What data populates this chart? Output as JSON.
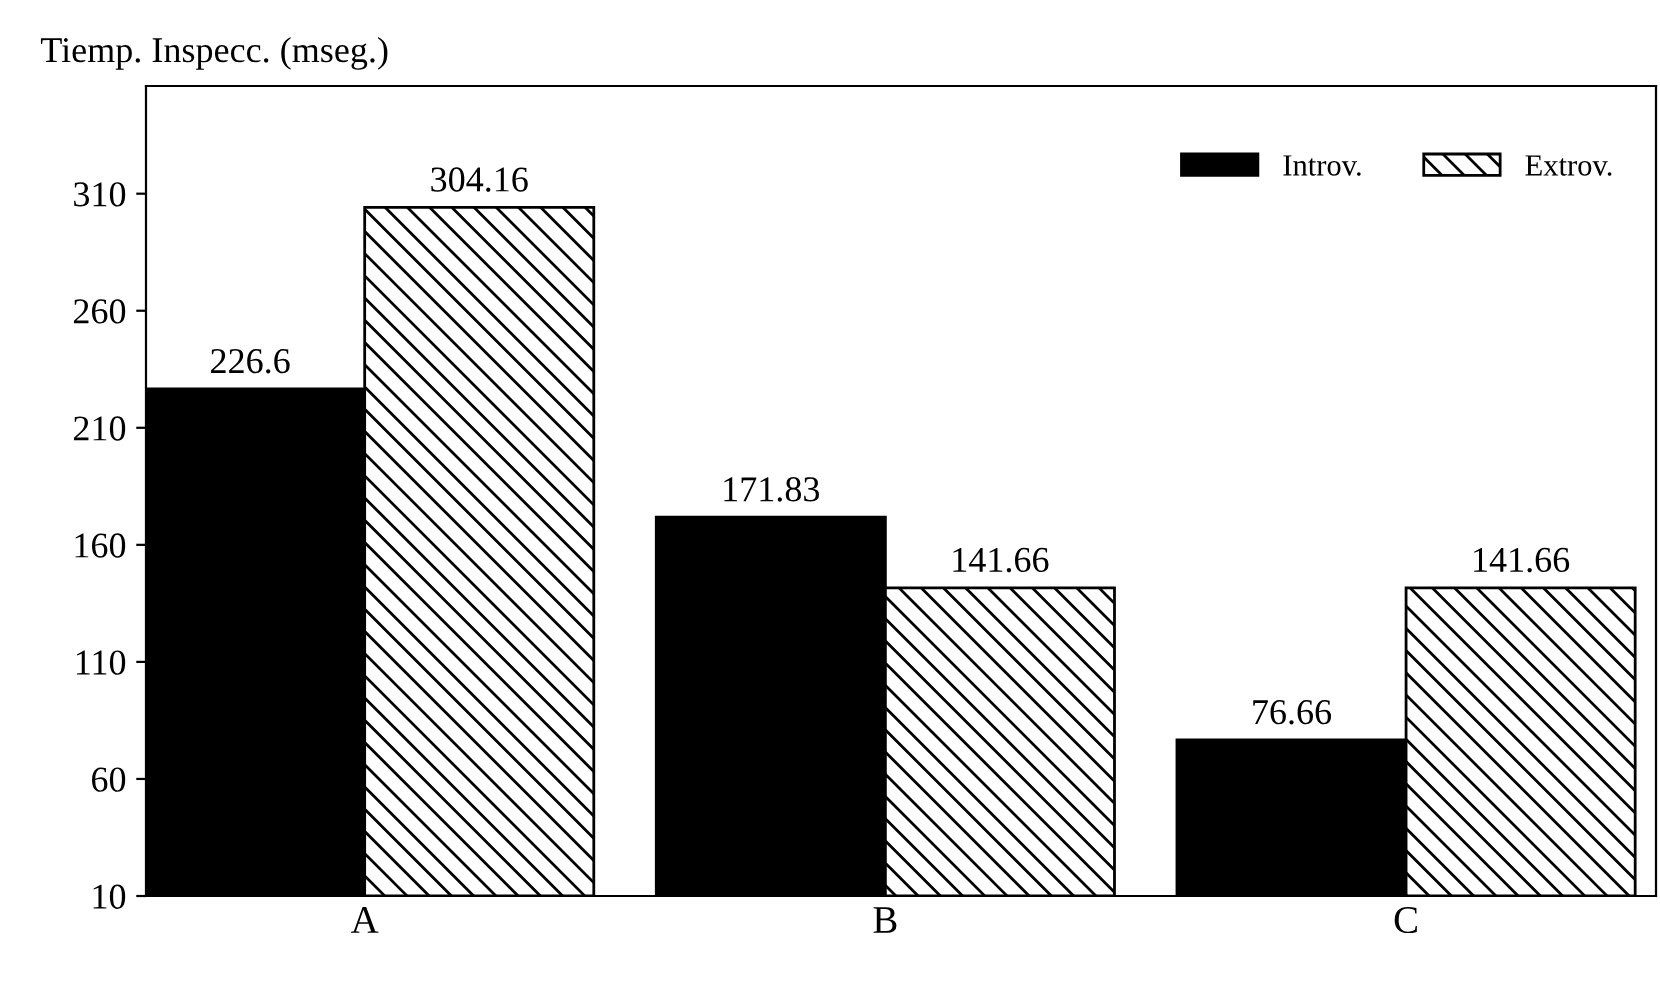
{
  "chart_data": {
    "type": "bar",
    "ylabel": "Tiemp. Inspecc. (mseg.)",
    "categories": [
      "A",
      "B",
      "C"
    ],
    "series": [
      {
        "name": "Introv.",
        "color": "#000000",
        "values": [
          226.6,
          171.83,
          76.66
        ]
      },
      {
        "name": "Extrov.",
        "color": "#000000",
        "values": [
          304.16,
          141.66,
          141.66
        ]
      }
    ],
    "ylim": [
      10,
      356
    ],
    "yticks": [
      10,
      60,
      110,
      160,
      210,
      260,
      310
    ],
    "data_labels": true,
    "legend": "top right",
    "grid": false
  }
}
